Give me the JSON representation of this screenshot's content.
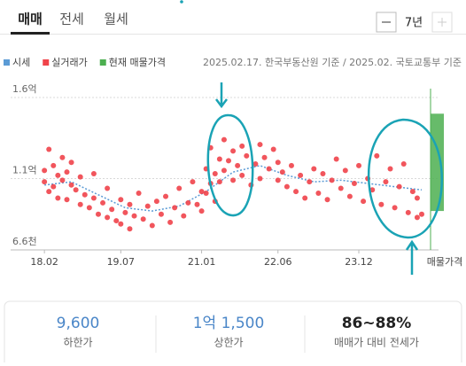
{
  "tabs": [
    "매매",
    "전세",
    "월세"
  ],
  "period": "7년",
  "chart_data": {
    "type": "scatter",
    "source": "2025.02.17. 한국부동산원 기준 / 2025.02. 국토교통부 기준",
    "xlim": [
      "17.12",
      "25.02"
    ],
    "xticks": [
      "18.02",
      "19.07",
      "21.01",
      "22.06",
      "23.12"
    ],
    "ylim": [
      6600,
      16000
    ],
    "yticks": [
      {
        "value": 6600,
        "label": "6.6천"
      },
      {
        "value": 11000,
        "label": "1.1억"
      },
      {
        "value": 16000,
        "label": "1.6억"
      }
    ],
    "grid": true,
    "trend": {
      "name": "시세",
      "color": "#5b9bd5",
      "x": [
        "18.02",
        "18.08",
        "19.02",
        "19.08",
        "20.02",
        "20.08",
        "21.02",
        "21.08",
        "22.02",
        "22.08",
        "23.02",
        "23.08",
        "24.02",
        "24.08",
        "25.02"
      ],
      "values": [
        10600,
        10800,
        10000,
        9200,
        9000,
        9300,
        10200,
        11400,
        11800,
        11200,
        10800,
        10900,
        10700,
        10500,
        10300
      ]
    },
    "series": [
      {
        "name": "실거래가",
        "color": "#f0434a",
        "x": [
          "18.02",
          "18.02",
          "18.03",
          "18.03",
          "18.04",
          "18.04",
          "18.05",
          "18.05",
          "18.06",
          "18.06",
          "18.07",
          "18.07",
          "18.08",
          "18.08",
          "18.09",
          "18.10",
          "18.10",
          "18.11",
          "18.12",
          "19.01",
          "19.01",
          "19.02",
          "19.03",
          "19.04",
          "19.04",
          "19.05",
          "19.06",
          "19.07",
          "19.07",
          "19.08",
          "19.09",
          "19.09",
          "19.10",
          "19.11",
          "19.12",
          "20.01",
          "20.02",
          "20.03",
          "20.04",
          "20.05",
          "20.06",
          "20.07",
          "20.08",
          "20.09",
          "20.10",
          "20.11",
          "20.12",
          "21.01",
          "21.01",
          "21.02",
          "21.02",
          "21.03",
          "21.03",
          "21.04",
          "21.04",
          "21.05",
          "21.05",
          "21.06",
          "21.06",
          "21.07",
          "21.08",
          "21.08",
          "21.09",
          "21.10",
          "21.10",
          "21.11",
          "21.12",
          "22.01",
          "22.02",
          "22.02",
          "22.03",
          "22.04",
          "22.05",
          "22.06",
          "22.06",
          "22.07",
          "22.08",
          "22.09",
          "22.10",
          "22.11",
          "22.12",
          "23.01",
          "23.02",
          "23.03",
          "23.04",
          "23.05",
          "23.06",
          "23.07",
          "23.08",
          "23.09",
          "23.10",
          "23.11",
          "23.12",
          "24.01",
          "24.02",
          "24.03",
          "24.04",
          "24.05",
          "24.06",
          "24.07",
          "24.08",
          "24.09",
          "24.10",
          "24.11",
          "24.12",
          "25.01",
          "25.01",
          "25.02"
        ],
        "values": [
          10800,
          11500,
          12800,
          10200,
          11800,
          10500,
          11200,
          9800,
          12300,
          10900,
          11400,
          9700,
          10600,
          12000,
          10300,
          11100,
          9400,
          10000,
          9200,
          11300,
          9800,
          8800,
          9500,
          10400,
          8600,
          9100,
          8400,
          9700,
          8200,
          8900,
          9400,
          7900,
          8700,
          10100,
          8500,
          9300,
          8100,
          9600,
          8800,
          9900,
          8300,
          9200,
          10400,
          8700,
          9500,
          10800,
          9400,
          10200,
          9000,
          11600,
          10100,
          12900,
          10700,
          11300,
          9600,
          12200,
          10800,
          13400,
          11500,
          12100,
          10900,
          12700,
          11800,
          13000,
          11200,
          12400,
          10600,
          11900,
          13100,
          11000,
          12300,
          11600,
          12800,
          10900,
          12000,
          11400,
          10500,
          11800,
          10200,
          11200,
          9800,
          10800,
          11600,
          10100,
          11300,
          9700,
          10900,
          12200,
          10400,
          11500,
          9900,
          10700,
          11800,
          9600,
          11000,
          10300,
          12400,
          9400,
          10800,
          11600,
          9200,
          10500,
          11900,
          8900,
          10200,
          8600,
          9800,
          8800
        ]
      }
    ],
    "listing": {
      "name": "현재 매물가격",
      "label": "매물가격",
      "color": "#4caf50",
      "low": 9000,
      "high": 15000
    }
  },
  "summary": [
    {
      "value": "9,600",
      "label": "하한가"
    },
    {
      "value": "1억 1,500",
      "label": "상한가"
    },
    {
      "value": "86~88%",
      "label": "매매가 대비 전세가"
    }
  ]
}
